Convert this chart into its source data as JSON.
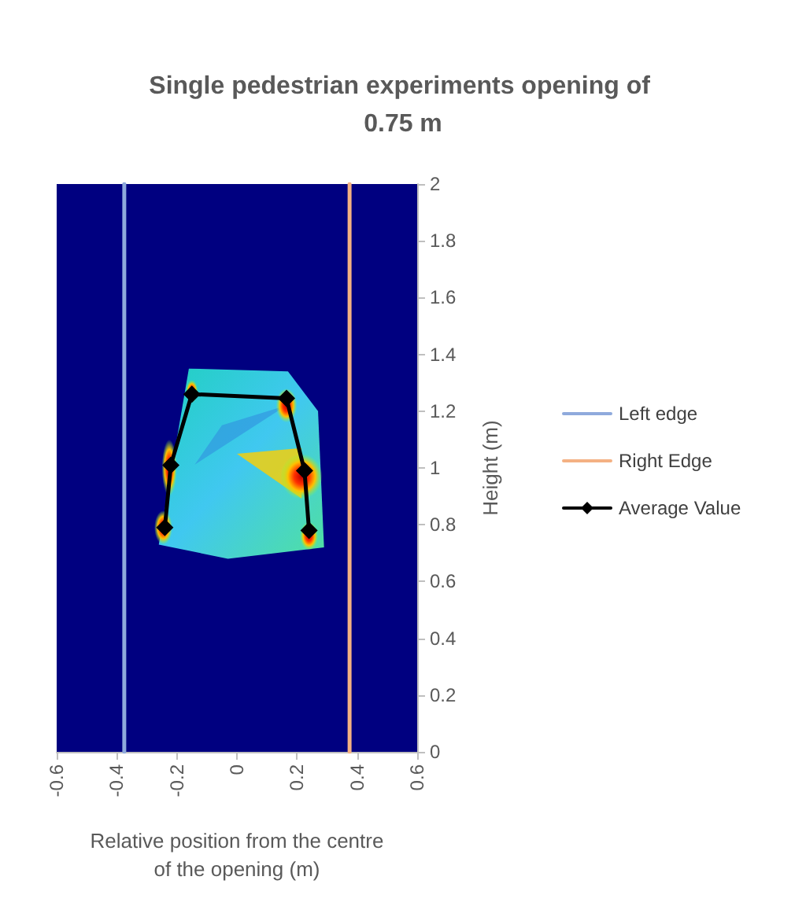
{
  "chart_data": {
    "type": "line",
    "title": "Single pedestrian experiments opening of 0.75 m",
    "xlabel": "Relative position from the centre of the opening (m)",
    "ylabel": "Height (m)",
    "xlim": [
      -0.6,
      0.6
    ],
    "xticks": [
      -0.6,
      -0.4,
      -0.2,
      0,
      0.2,
      0.4,
      0.6
    ],
    "ylim": [
      0,
      2
    ],
    "yticks": [
      0,
      0.2,
      0.4,
      0.6,
      0.8,
      1,
      1.2,
      1.4,
      1.6,
      1.8,
      2
    ],
    "grid": false,
    "legend": "right",
    "series": [
      {
        "name": "Left edge",
        "color": "#8faadc",
        "x": [
          -0.375,
          -0.375
        ],
        "values": [
          0,
          2
        ],
        "marker": "none"
      },
      {
        "name": "Right Edge",
        "color": "#f4b183",
        "x": [
          0.375,
          0.375
        ],
        "values": [
          0,
          2
        ],
        "marker": "none"
      },
      {
        "name": "Average Value",
        "color": "#000000",
        "x": [
          -0.24,
          -0.22,
          -0.15,
          0.165,
          0.225,
          0.24
        ],
        "values": [
          0.79,
          1.01,
          1.26,
          1.245,
          0.99,
          0.78
        ],
        "marker": "diamond"
      }
    ]
  }
}
